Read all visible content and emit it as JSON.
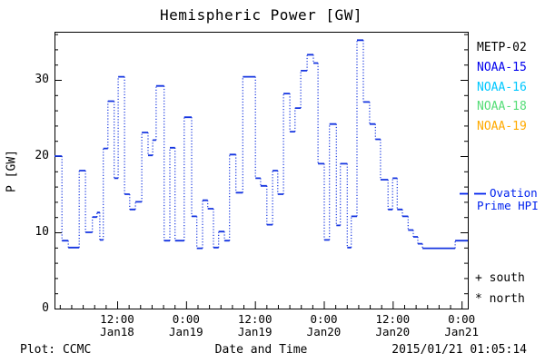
{
  "title": "Hemispheric Power [GW]",
  "yaxis": {
    "label": "P [GW]",
    "ticks": [
      {
        "v": 0,
        "label": "0"
      },
      {
        "v": 10,
        "label": "10"
      },
      {
        "v": 20,
        "label": "20"
      },
      {
        "v": 30,
        "label": "30"
      }
    ],
    "minor_step": 2,
    "max": 36.3
  },
  "xaxis": {
    "start": "2015-01-18 01:05",
    "end": "2015-01-21 01:05",
    "span_hours": 72,
    "minor_step_hours": 2,
    "minor_offset_hours": 0.92,
    "ticks": [
      {
        "h": 10.92,
        "time": "12:00",
        "date": "Jan18"
      },
      {
        "h": 22.92,
        "time": "0:00",
        "date": "Jan19"
      },
      {
        "h": 34.92,
        "time": "12:00",
        "date": "Jan19"
      },
      {
        "h": 46.92,
        "time": "0:00",
        "date": "Jan20"
      },
      {
        "h": 58.92,
        "time": "12:00",
        "date": "Jan20"
      },
      {
        "h": 70.92,
        "time": "0:00",
        "date": "Jan21"
      }
    ]
  },
  "legend": {
    "satellites": [
      {
        "label": "METP-02",
        "color": "#000000"
      },
      {
        "label": "NOAA-15",
        "color": "#0000ee"
      },
      {
        "label": "NOAA-16",
        "color": "#00c8ff"
      },
      {
        "label": "NOAA-18",
        "color": "#55dd77"
      },
      {
        "label": "NOAA-19",
        "color": "#ffaa00"
      }
    ],
    "ovation": {
      "line1": "Ovation",
      "line2": "Prime HPI",
      "color": "#0022ee"
    },
    "south_label": "+ south",
    "north_label": "* north"
  },
  "footer": {
    "credit": "Plot: CCMC",
    "xlabel": "Date and Time",
    "timestamp": "2015/01/21 01:05:14"
  },
  "colors": {
    "line": "#1535e0",
    "axis": "#000000",
    "background": "#ffffff"
  },
  "chart_data": {
    "type": "line",
    "style": "step-histogram, dotted vertical connectors",
    "title": "Hemispheric Power [GW]",
    "xlabel": "Date and Time",
    "ylabel": "P [GW]",
    "ylim": [
      0,
      36.3
    ],
    "x_start": "2015-01-18 01:05",
    "x_end": "2015-01-21 01:05",
    "grid": false,
    "legend_position": "right",
    "series": [
      {
        "name": "Ovation Prime HPI",
        "color": "#1535e0",
        "t_hours_from_start": [
          0,
          1.3,
          2.4,
          4.3,
          5.4,
          6.6,
          7.4,
          7.9,
          8.5,
          9.3,
          10.4,
          11.1,
          12.2,
          13.1,
          14.1,
          15.2,
          16.3,
          17.1,
          17.7,
          19.1,
          20.1,
          21.0,
          22.6,
          23.9,
          24.8,
          25.8,
          26.7,
          27.7,
          28.6,
          29.6,
          30.5,
          31.6,
          32.8,
          35.0,
          35.9,
          37.0,
          38.0,
          38.9,
          39.9,
          41.0,
          41.9,
          42.9,
          44.0,
          45.1,
          45.9,
          47.0,
          47.9,
          49.1,
          49.8,
          51.0,
          51.7,
          52.7,
          53.8,
          54.9,
          55.9,
          56.8,
          58.1,
          58.9,
          59.7,
          60.6,
          61.6,
          62.5,
          63.3,
          64.1,
          69.8
        ],
        "p_gw": [
          20.0,
          8.9,
          8.0,
          18.1,
          10.0,
          12.0,
          12.6,
          9.0,
          21.0,
          27.2,
          17.1,
          30.4,
          15.0,
          13.0,
          14.0,
          23.1,
          20.1,
          22.1,
          29.2,
          8.9,
          21.1,
          8.9,
          25.1,
          12.1,
          7.9,
          14.2,
          13.1,
          8.0,
          10.1,
          8.9,
          20.2,
          15.2,
          30.4,
          17.1,
          16.1,
          11.0,
          18.1,
          15.0,
          28.2,
          23.2,
          26.3,
          31.2,
          33.3,
          32.2,
          19.0,
          9.0,
          24.2,
          10.9,
          19.0,
          8.0,
          12.1,
          35.2,
          27.1,
          24.2,
          22.2,
          16.9,
          13.0,
          17.1,
          13.0,
          12.1,
          10.3,
          9.4,
          8.5,
          7.9,
          8.9
        ],
        "t_end_hours": 72
      }
    ]
  }
}
